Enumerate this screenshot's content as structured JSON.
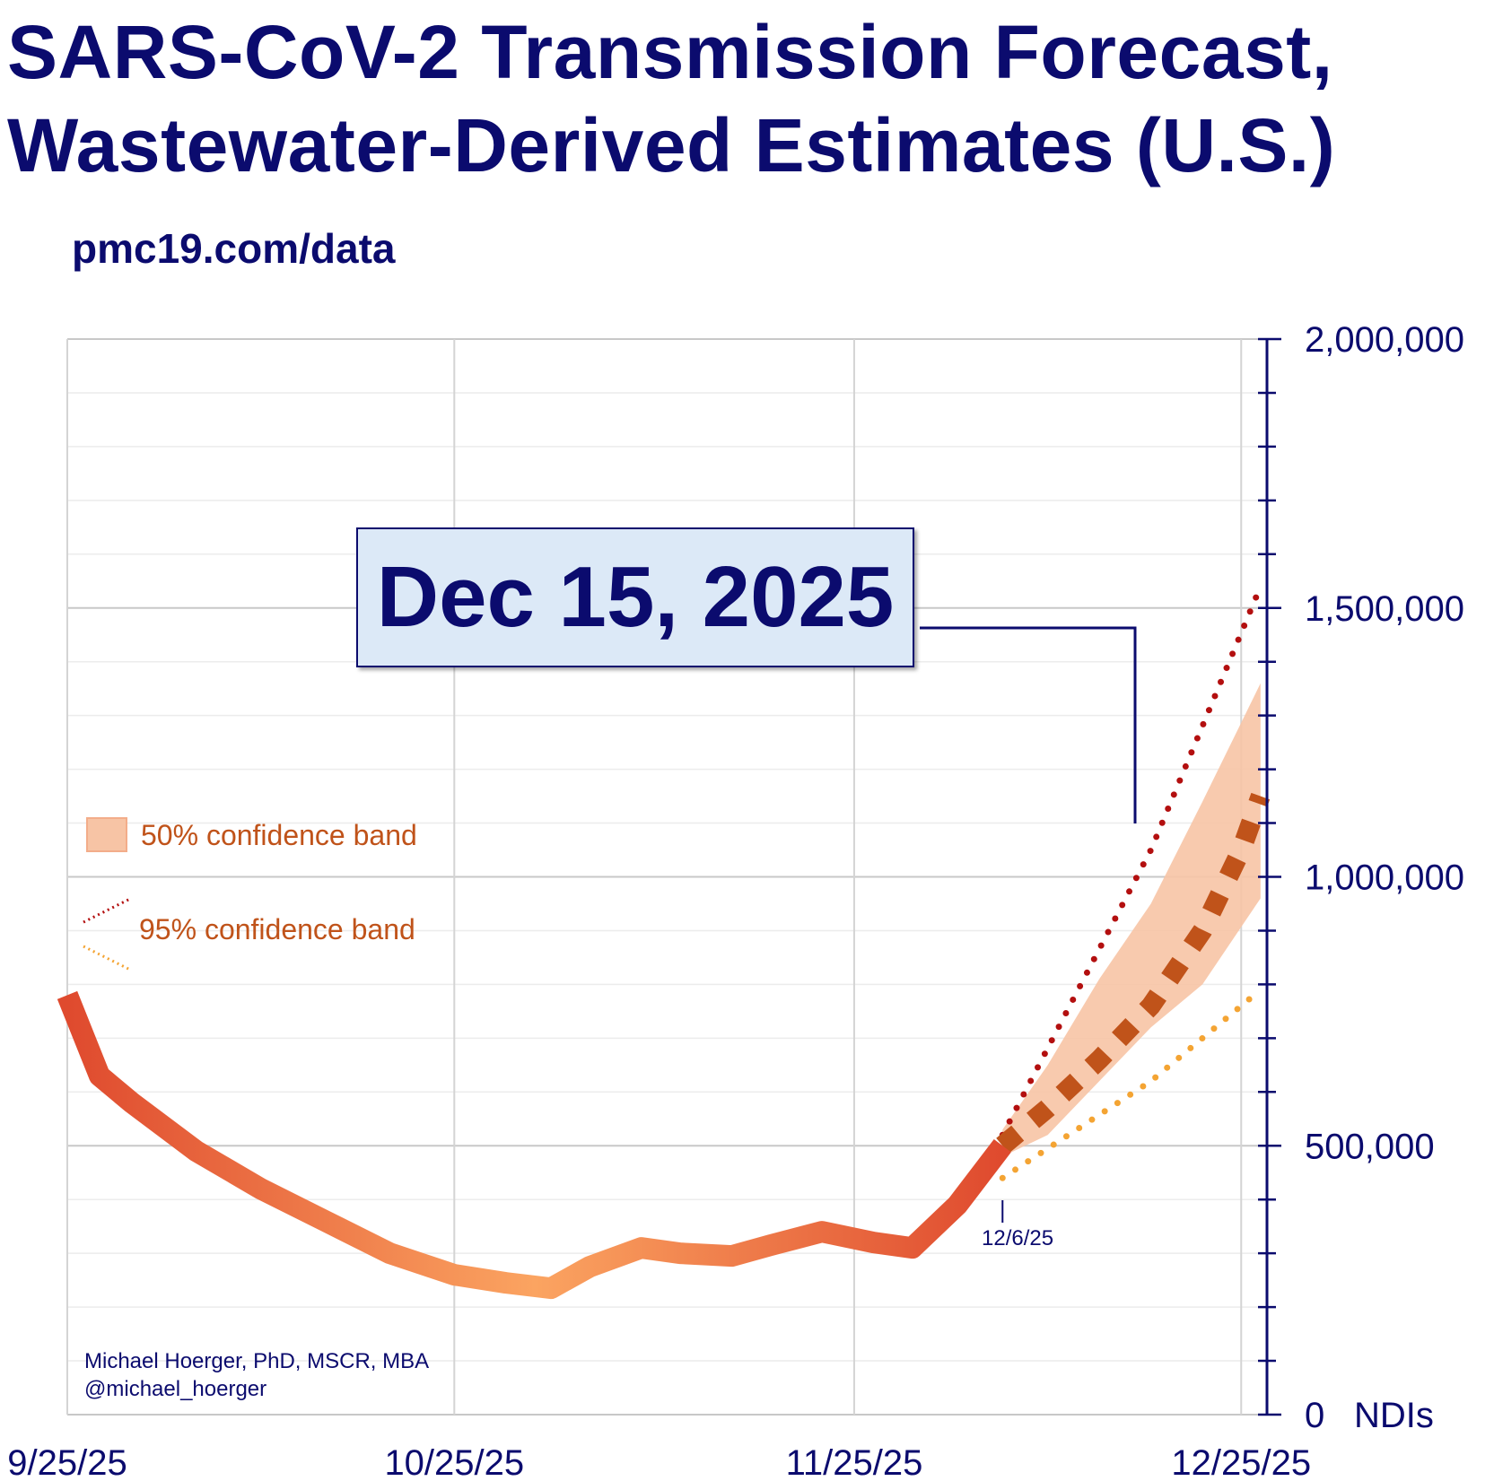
{
  "title_line1": "SARS-CoV-2 Transmission Forecast,",
  "title_line2": "Wastewater-Derived Estimates (U.S.)",
  "subtitle": "pmc19.com/data",
  "callout": "Dec 15, 2025",
  "legend": {
    "band50": "50% confidence band",
    "band95": "95% confidence band"
  },
  "credit": {
    "line1": "Michael Hoerger, PhD, MSCR, MBA",
    "line2": "@michael_hoerger"
  },
  "forecast_marker_label": "12/6/25",
  "colors": {
    "title": "#0b0b6e",
    "observed_high": "#df4a2e",
    "observed_low": "#fba461",
    "median_forecast": "#c0531a",
    "band50": "#f7c4a5",
    "upper95": "#b30f0f",
    "lower95": "#f4a433",
    "legend_text": "#c0531a"
  },
  "chart_data": {
    "type": "line",
    "x_start": "9/25/25",
    "x_tick_labels": [
      "9/25/25",
      "10/25/25",
      "11/25/25",
      "12/25/25"
    ],
    "x_tick_days": [
      0,
      30,
      61,
      91
    ],
    "ylim": [
      0,
      2000000
    ],
    "y_ticks": [
      0,
      500000,
      1000000,
      1500000,
      2000000
    ],
    "y_tick_labels": [
      "0",
      "500,000",
      "1,000,000",
      "1,500,000",
      "2,000,000"
    ],
    "y_unit": "NDIs",
    "grid": true,
    "legend_position": "left-middle",
    "series": [
      {
        "points": [
          [
            0,
            780000
          ],
          [
            2.5,
            630000
          ],
          [
            5,
            580000
          ],
          [
            10,
            490000
          ],
          [
            15,
            420000
          ],
          [
            20,
            360000
          ],
          [
            25,
            300000
          ],
          [
            30,
            260000
          ],
          [
            34,
            245000
          ],
          [
            37.5,
            235000
          ],
          [
            40.5,
            275000
          ],
          [
            44.5,
            310000
          ],
          [
            47.5,
            300000
          ],
          [
            51.5,
            295000
          ],
          [
            54.5,
            315000
          ],
          [
            58.5,
            340000
          ],
          [
            62.5,
            320000
          ],
          [
            65.5,
            310000
          ],
          [
            69,
            390000
          ],
          [
            72.5,
            500000
          ]
        ]
      },
      {
        "points": [
          [
            72.5,
            500000
          ],
          [
            76,
            570000
          ],
          [
            80,
            660000
          ],
          [
            84,
            760000
          ],
          [
            88,
            900000
          ],
          [
            91,
            1050000
          ],
          [
            92.5,
            1150000
          ]
        ]
      },
      {
        "points": [
          [
            72.5,
            520000
          ],
          [
            84,
            1050000
          ],
          [
            92.5,
            1540000
          ]
        ]
      },
      {
        "points": [
          [
            72.5,
            440000
          ],
          [
            84,
            620000
          ],
          [
            92.5,
            790000
          ]
        ]
      }
    ],
    "band50": {
      "x": [
        72.5,
        76,
        80,
        84,
        88,
        92.5
      ],
      "upper": [
        530000,
        650000,
        810000,
        950000,
        1140000,
        1360000
      ],
      "lower": [
        480000,
        520000,
        620000,
        720000,
        800000,
        960000
      ]
    },
    "forecast_start_day": 72.5
  }
}
